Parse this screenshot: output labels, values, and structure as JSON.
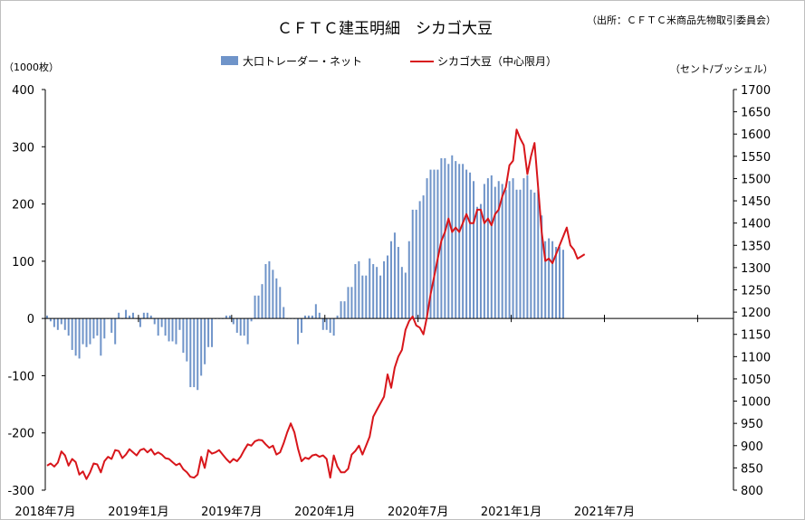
{
  "chart_data": {
    "type": "bar+line",
    "title": "ＣＦＴＣ建玉明細　シカゴ大豆",
    "source_note": "（出所：ＣＦＴＣ米商品先物取引委員会）",
    "left_axis_label": "（1000枚）",
    "right_axis_label": "（セント/ブッシェル）",
    "left_ylim": [
      -300,
      400
    ],
    "left_ticks": [
      400,
      300,
      200,
      100,
      0,
      -100,
      -200,
      -300
    ],
    "right_ylim": [
      800,
      1700
    ],
    "right_ticks": [
      1700,
      1650,
      1600,
      1550,
      1500,
      1450,
      1400,
      1350,
      1300,
      1250,
      1200,
      1150,
      1100,
      1050,
      1000,
      950,
      900,
      850,
      800
    ],
    "x_tick_labels": [
      "2018年7月",
      "2019年1月",
      "2019年7月",
      "2020年1月",
      "2020年7月",
      "2021年1月",
      "2021年7月"
    ],
    "x_slots": 192,
    "bar_color": "#6f94c9",
    "line_color": "#d8161b",
    "series": [
      {
        "name": "大口トレーダー・ネット",
        "kind": "bar",
        "axis": "left",
        "values": [
          5,
          -5,
          -15,
          -20,
          -10,
          -20,
          -30,
          -55,
          -65,
          -70,
          -45,
          -50,
          -45,
          -35,
          -30,
          -65,
          -35,
          0,
          -25,
          -45,
          10,
          0,
          15,
          5,
          10,
          0,
          -15,
          10,
          10,
          5,
          -10,
          -30,
          -15,
          -30,
          -40,
          -40,
          -45,
          -20,
          -60,
          -75,
          -120,
          -120,
          -125,
          -100,
          -80,
          -50,
          -50,
          0,
          0,
          0,
          5,
          5,
          -10,
          -25,
          -30,
          -30,
          -45,
          -5,
          40,
          40,
          60,
          95,
          100,
          85,
          70,
          55,
          20,
          0,
          0,
          0,
          -45,
          -25,
          5,
          5,
          5,
          25,
          10,
          -20,
          -20,
          -25,
          -30,
          5,
          30,
          30,
          55,
          55,
          95,
          100,
          75,
          75,
          105,
          95,
          90,
          75,
          100,
          110,
          135,
          150,
          125,
          90,
          80,
          135,
          190,
          190,
          205,
          215,
          245,
          260,
          260,
          260,
          280,
          280,
          270,
          285,
          275,
          270,
          270,
          260,
          255,
          240,
          195,
          200,
          235,
          245,
          250,
          230,
          240,
          235,
          225,
          240,
          245,
          225,
          225,
          245,
          250,
          225,
          220,
          225,
          180,
          135,
          140,
          135,
          125,
          125,
          120
        ]
      },
      {
        "name": "シカゴ大豆（中心限月）",
        "kind": "line",
        "axis": "right",
        "values": [
          855,
          860,
          853,
          862,
          887,
          878,
          855,
          870,
          863,
          835,
          842,
          825,
          840,
          860,
          858,
          840,
          865,
          875,
          870,
          890,
          888,
          872,
          880,
          892,
          885,
          878,
          890,
          893,
          885,
          892,
          880,
          885,
          880,
          872,
          870,
          863,
          856,
          860,
          847,
          840,
          830,
          828,
          835,
          875,
          850,
          890,
          882,
          885,
          890,
          880,
          870,
          862,
          870,
          865,
          875,
          890,
          903,
          900,
          910,
          913,
          912,
          903,
          895,
          900,
          880,
          885,
          905,
          930,
          950,
          930,
          893,
          865,
          873,
          870,
          878,
          880,
          875,
          878,
          870,
          828,
          878,
          853,
          840,
          840,
          848,
          880,
          888,
          900,
          880,
          900,
          920,
          965,
          980,
          995,
          1010,
          1060,
          1030,
          1075,
          1100,
          1115,
          1160,
          1180,
          1190,
          1170,
          1165,
          1150,
          1190,
          1240,
          1280,
          1320,
          1360,
          1380,
          1410,
          1380,
          1390,
          1380,
          1400,
          1420,
          1400,
          1400,
          1430,
          1430,
          1400,
          1410,
          1395,
          1420,
          1430,
          1460,
          1480,
          1530,
          1540,
          1610,
          1590,
          1575,
          1510,
          1550,
          1580,
          1480,
          1380,
          1315,
          1320,
          1310,
          1330,
          1350,
          1370,
          1390,
          1350,
          1340,
          1320,
          1325,
          1330
        ]
      }
    ]
  }
}
